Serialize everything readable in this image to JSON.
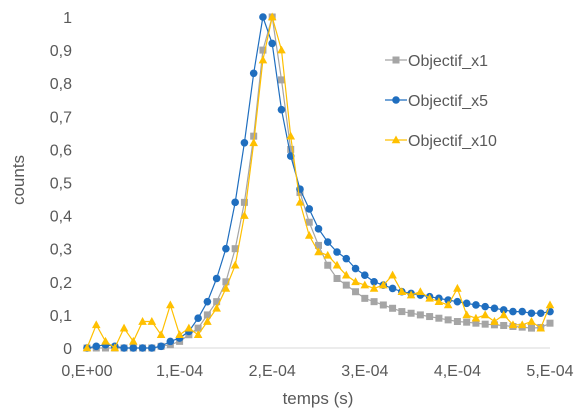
{
  "chart_data": {
    "type": "scatter",
    "title": "",
    "xlabel": "temps (s)",
    "ylabel": "counts",
    "xlim": [
      0,
      0.0005
    ],
    "ylim": [
      0,
      1
    ],
    "x_ticks": [
      {
        "value": 0,
        "label": "0,E+00"
      },
      {
        "value": 0.0001,
        "label": "1,E-04"
      },
      {
        "value": 0.0002,
        "label": "2,E-04"
      },
      {
        "value": 0.0003,
        "label": "3,E-04"
      },
      {
        "value": 0.0004,
        "label": "4,E-04"
      },
      {
        "value": 0.0005,
        "label": "5,E-04"
      }
    ],
    "y_ticks": [
      {
        "value": 0,
        "label": "0"
      },
      {
        "value": 0.1,
        "label": "0,1"
      },
      {
        "value": 0.2,
        "label": "0,2"
      },
      {
        "value": 0.3,
        "label": "0,3"
      },
      {
        "value": 0.4,
        "label": "0,4"
      },
      {
        "value": 0.5,
        "label": "0,5"
      },
      {
        "value": 0.6,
        "label": "0,6"
      },
      {
        "value": 0.7,
        "label": "0,7"
      },
      {
        "value": 0.8,
        "label": "0,8"
      },
      {
        "value": 0.9,
        "label": "0,9"
      },
      {
        "value": 1,
        "label": "1"
      }
    ],
    "grid": false,
    "legend_position": "top-right",
    "series": [
      {
        "name": "Objectif_x1",
        "color": "#a5a5a5",
        "marker": "square",
        "x": [
          0,
          1e-05,
          2e-05,
          3e-05,
          4e-05,
          5e-05,
          6e-05,
          7e-05,
          8e-05,
          9e-05,
          0.0001,
          0.00011,
          0.00012,
          0.00013,
          0.00014,
          0.00015,
          0.00016,
          0.00017,
          0.00018,
          0.00019,
          0.0002,
          0.00021,
          0.00022,
          0.00023,
          0.00024,
          0.00025,
          0.00026,
          0.00027,
          0.00028,
          0.00029,
          0.0003,
          0.00031,
          0.00032,
          0.00033,
          0.00034,
          0.00035,
          0.00036,
          0.00037,
          0.00038,
          0.00039,
          0.0004,
          0.00041,
          0.00042,
          0.00043,
          0.00044,
          0.00045,
          0.00046,
          0.00047,
          0.00048,
          0.00049,
          0.0005
        ],
        "y": [
          0.0,
          0.0,
          0.0,
          0.0,
          0.0,
          0.0,
          0.0,
          0.0,
          0.005,
          0.01,
          0.02,
          0.04,
          0.06,
          0.1,
          0.14,
          0.2,
          0.3,
          0.44,
          0.64,
          0.9,
          1.0,
          0.81,
          0.6,
          0.47,
          0.38,
          0.31,
          0.25,
          0.21,
          0.19,
          0.17,
          0.15,
          0.14,
          0.13,
          0.12,
          0.11,
          0.105,
          0.1,
          0.095,
          0.09,
          0.085,
          0.08,
          0.078,
          0.075,
          0.072,
          0.07,
          0.068,
          0.065,
          0.063,
          0.06,
          0.062,
          0.075
        ]
      },
      {
        "name": "Objectif_x5",
        "color": "#1f6ebf",
        "marker": "circle",
        "x": [
          0,
          1e-05,
          2e-05,
          3e-05,
          4e-05,
          5e-05,
          6e-05,
          7e-05,
          8e-05,
          9e-05,
          0.0001,
          0.00011,
          0.00012,
          0.00013,
          0.00014,
          0.00015,
          0.00016,
          0.00017,
          0.00018,
          0.00019,
          0.0002,
          0.00021,
          0.00022,
          0.00023,
          0.00024,
          0.00025,
          0.00026,
          0.00027,
          0.00028,
          0.00029,
          0.0003,
          0.00031,
          0.00032,
          0.00033,
          0.00034,
          0.00035,
          0.00036,
          0.00037,
          0.00038,
          0.00039,
          0.0004,
          0.00041,
          0.00042,
          0.00043,
          0.00044,
          0.00045,
          0.00046,
          0.00047,
          0.00048,
          0.00049,
          0.0005
        ],
        "y": [
          0.0,
          0.005,
          0.01,
          0.005,
          0.0,
          0.0,
          0.0,
          0.0,
          0.005,
          0.02,
          0.03,
          0.05,
          0.09,
          0.14,
          0.21,
          0.3,
          0.44,
          0.62,
          0.83,
          1.0,
          0.92,
          0.72,
          0.58,
          0.48,
          0.42,
          0.36,
          0.32,
          0.29,
          0.27,
          0.24,
          0.22,
          0.2,
          0.19,
          0.18,
          0.17,
          0.165,
          0.16,
          0.155,
          0.15,
          0.145,
          0.14,
          0.135,
          0.13,
          0.125,
          0.12,
          0.115,
          0.11,
          0.11,
          0.105,
          0.105,
          0.11
        ]
      },
      {
        "name": "Objectif_x10",
        "color": "#ffc000",
        "marker": "triangle",
        "x": [
          0,
          1e-05,
          2e-05,
          3e-05,
          4e-05,
          5e-05,
          6e-05,
          7e-05,
          8e-05,
          9e-05,
          0.0001,
          0.00011,
          0.00012,
          0.00013,
          0.00014,
          0.00015,
          0.00016,
          0.00017,
          0.00018,
          0.00019,
          0.0002,
          0.00021,
          0.00022,
          0.00023,
          0.00024,
          0.00025,
          0.00026,
          0.00027,
          0.00028,
          0.00029,
          0.0003,
          0.00031,
          0.00032,
          0.00033,
          0.00034,
          0.00035,
          0.00036,
          0.00037,
          0.00038,
          0.00039,
          0.0004,
          0.00041,
          0.00042,
          0.00043,
          0.00044,
          0.00045,
          0.00046,
          0.00047,
          0.00048,
          0.00049,
          0.0005
        ],
        "y": [
          0.0,
          0.07,
          0.02,
          0.0,
          0.06,
          0.02,
          0.08,
          0.08,
          0.04,
          0.13,
          0.04,
          0.06,
          0.04,
          0.08,
          0.12,
          0.18,
          0.25,
          0.4,
          0.62,
          0.87,
          1.0,
          0.9,
          0.64,
          0.44,
          0.34,
          0.29,
          0.28,
          0.25,
          0.22,
          0.2,
          0.19,
          0.18,
          0.19,
          0.22,
          0.17,
          0.16,
          0.17,
          0.15,
          0.14,
          0.13,
          0.18,
          0.1,
          0.09,
          0.1,
          0.08,
          0.1,
          0.07,
          0.07,
          0.08,
          0.06,
          0.13
        ]
      }
    ]
  }
}
